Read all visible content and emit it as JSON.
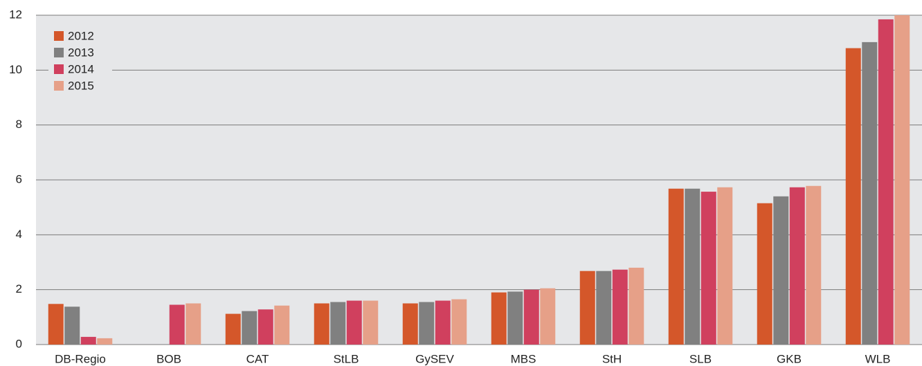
{
  "chart_data": {
    "type": "bar",
    "categories": [
      "DB-Regio",
      "BOB",
      "CAT",
      "StLB",
      "GySEV",
      "MBS",
      "StH",
      "SLB",
      "GKB",
      "WLB"
    ],
    "series": [
      {
        "name": "2012",
        "color": "#d4572a",
        "values": [
          1.48,
          null,
          1.12,
          1.5,
          1.5,
          1.9,
          2.68,
          5.68,
          5.15,
          10.8
        ]
      },
      {
        "name": "2013",
        "color": "#808080",
        "values": [
          1.38,
          null,
          1.22,
          1.55,
          1.55,
          1.93,
          2.68,
          5.68,
          5.4,
          11.02
        ]
      },
      {
        "name": "2014",
        "color": "#d0405e",
        "values": [
          0.28,
          1.45,
          1.28,
          1.6,
          1.6,
          2.0,
          2.73,
          5.57,
          5.73,
          11.85
        ]
      },
      {
        "name": "2015",
        "color": "#e6a088",
        "values": [
          0.23,
          1.5,
          1.42,
          1.6,
          1.65,
          2.05,
          2.8,
          5.73,
          5.78,
          12.0
        ]
      }
    ],
    "ylim": [
      0,
      12
    ],
    "yticks": [
      0,
      2,
      4,
      6,
      8,
      10,
      12
    ],
    "grid": true,
    "legend": "top-left"
  }
}
